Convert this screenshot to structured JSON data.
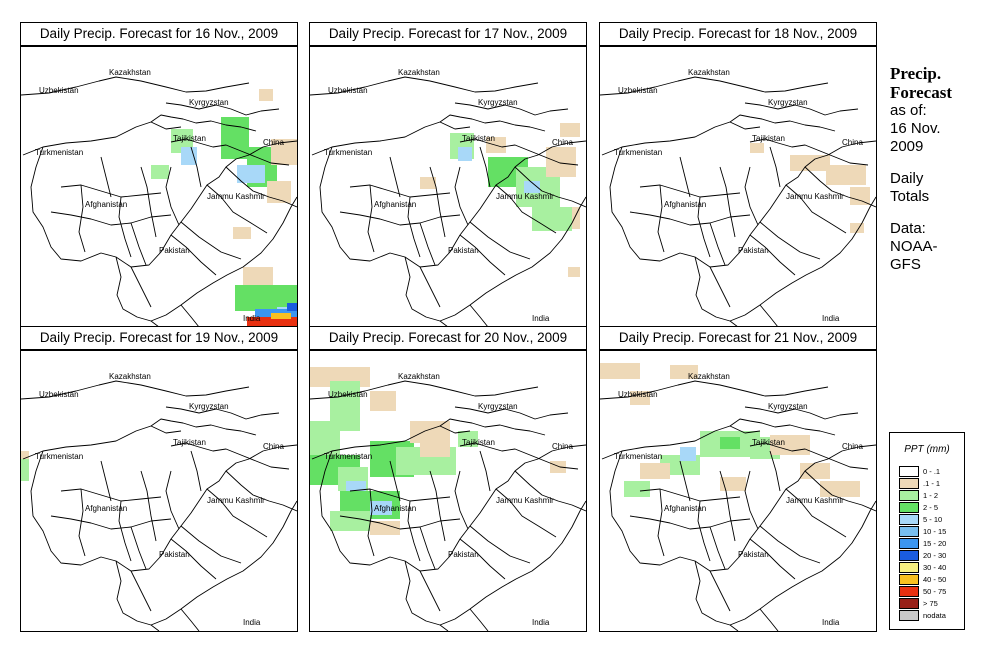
{
  "panels": [
    {
      "title": "Daily Precip. Forecast for  16 Nov., 2009"
    },
    {
      "title": "Daily Precip. Forecast for  17 Nov., 2009"
    },
    {
      "title": "Daily Precip. Forecast for  18 Nov., 2009"
    },
    {
      "title": "Daily Precip. Forecast for  19 Nov., 2009"
    },
    {
      "title": "Daily Precip. Forecast for  20 Nov., 2009"
    },
    {
      "title": "Daily Precip. Forecast for  21 Nov., 2009"
    }
  ],
  "map_labels": {
    "uzbekistan": "Uzbekistan",
    "kazakhstan": "Kazakhstan",
    "kyrgyzstan": "Kyrgyzstan",
    "tajikistan": "Tajikistan",
    "turkmenistan": "Turkmenistan",
    "china": "China",
    "afghanistan": "Afghanistan",
    "jammu_kashmir": "Jammu Kashmir",
    "pakistan": "Pakistan",
    "india": "India"
  },
  "side_text": {
    "heading_line1": "Precip.",
    "heading_line2": "Forecast",
    "asof_line1": "as of:",
    "asof_line2": "16 Nov.",
    "asof_line3": "2009",
    "totals_line1": "Daily",
    "totals_line2": "Totals",
    "data_line1": "Data:",
    "data_line2": "NOAA-",
    "data_line3": "GFS"
  },
  "legend": {
    "title": "PPT (mm)",
    "items": [
      {
        "label": "0 - .1",
        "color": "#ffffff"
      },
      {
        "label": ".1 - 1",
        "color": "#eed9b8"
      },
      {
        "label": "1 - 2",
        "color": "#a8f0a0"
      },
      {
        "label": "2 - 5",
        "color": "#64e064"
      },
      {
        "label": "5 - 10",
        "color": "#a8d8f8"
      },
      {
        "label": "10 - 15",
        "color": "#78bff0"
      },
      {
        "label": "15 - 20",
        "color": "#3c96f0"
      },
      {
        "label": "20 - 30",
        "color": "#1a5ce0"
      },
      {
        "label": "30 - 40",
        "color": "#f8f080"
      },
      {
        "label": "40 - 50",
        "color": "#f8c020"
      },
      {
        "label": "50 - 75",
        "color": "#e83010"
      },
      {
        "label": "> 75",
        "color": "#982018"
      },
      {
        "label": "nodata",
        "color": "#c8c8c8"
      }
    ]
  },
  "colors": {
    "trace": "#eed9b8",
    "light_green": "#a8f0a0",
    "green": "#64e064",
    "light_blue": "#a8d8f8",
    "blue": "#78bff0",
    "mid_blue": "#3c96f0",
    "dark_blue": "#1a5ce0",
    "orange": "#f8c020",
    "red": "#e83010"
  }
}
